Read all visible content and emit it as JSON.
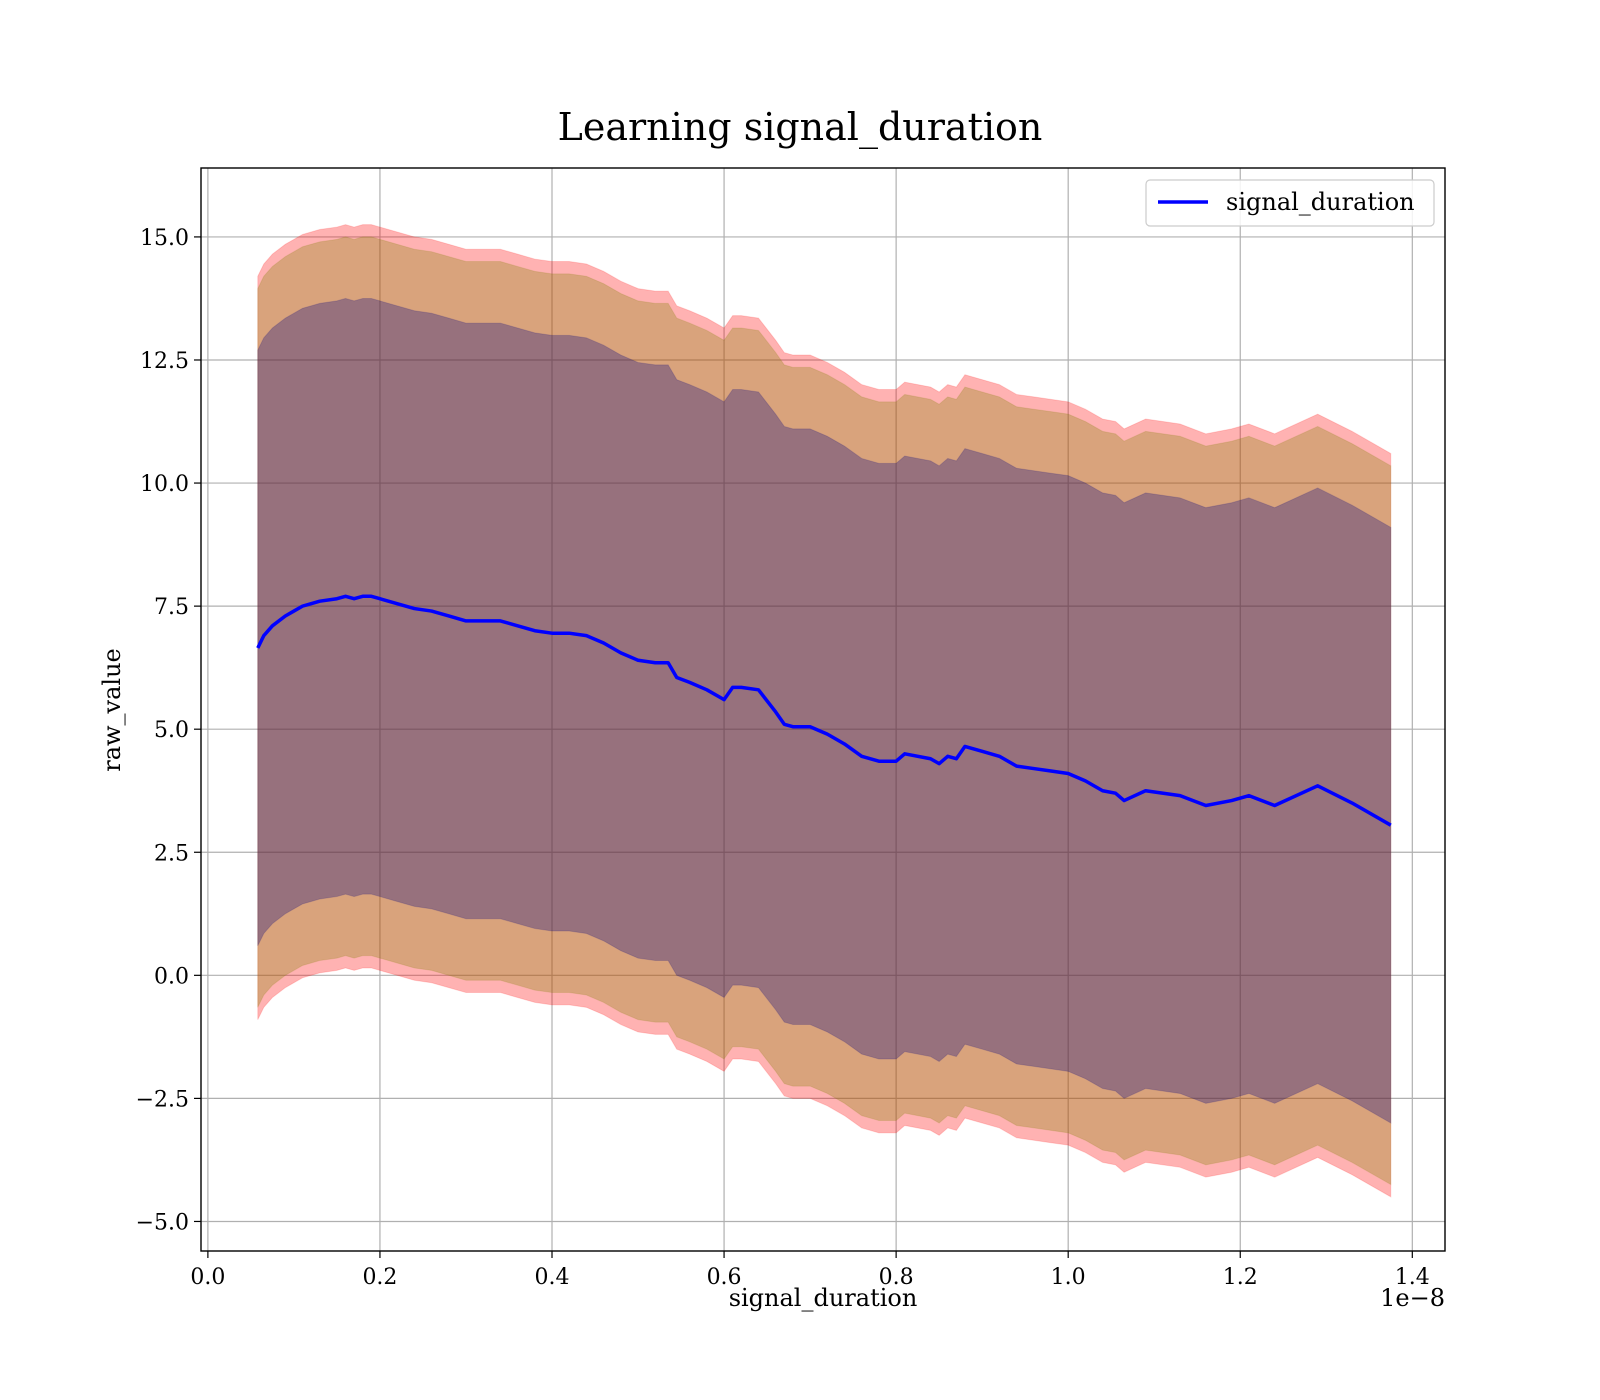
{
  "chart_data": {
    "type": "line",
    "title": "Learning signal_duration",
    "xlabel": "signal_duration",
    "ylabel": "raw_value",
    "x_offset_label": "1e−8",
    "xlim": [
      -0.008,
      1.438
    ],
    "ylim": [
      -5.6,
      16.4
    ],
    "x_ticks": [
      0.0,
      0.2,
      0.4,
      0.6,
      0.8,
      1.0,
      1.2,
      1.4
    ],
    "x_tick_labels": [
      "0.0",
      "0.2",
      "0.4",
      "0.6",
      "0.8",
      "1.0",
      "1.2",
      "1.4"
    ],
    "y_ticks": [
      -5.0,
      -2.5,
      0.0,
      2.5,
      5.0,
      7.5,
      10.0,
      12.5,
      15.0
    ],
    "y_tick_labels": [
      "−5.0",
      "−2.5",
      "0.0",
      "2.5",
      "5.0",
      "7.5",
      "10.0",
      "12.5",
      "15.0"
    ],
    "grid": true,
    "legend_position": "top-right",
    "series": [
      {
        "name": "signal_duration",
        "color": "#0000ff",
        "x": [
          0.058,
          0.065,
          0.075,
          0.09,
          0.1,
          0.11,
          0.12,
          0.13,
          0.15,
          0.16,
          0.17,
          0.18,
          0.19,
          0.2,
          0.22,
          0.24,
          0.26,
          0.28,
          0.3,
          0.32,
          0.34,
          0.36,
          0.38,
          0.4,
          0.42,
          0.44,
          0.46,
          0.48,
          0.5,
          0.52,
          0.535,
          0.545,
          0.56,
          0.58,
          0.6,
          0.61,
          0.62,
          0.64,
          0.66,
          0.67,
          0.68,
          0.7,
          0.72,
          0.74,
          0.76,
          0.78,
          0.8,
          0.81,
          0.84,
          0.85,
          0.86,
          0.87,
          0.88,
          0.9,
          0.92,
          0.94,
          0.96,
          0.98,
          1.0,
          1.02,
          1.04,
          1.055,
          1.065,
          1.09,
          1.13,
          1.16,
          1.19,
          1.21,
          1.24,
          1.29,
          1.33,
          1.375
        ],
        "y": [
          6.65,
          6.9,
          7.1,
          7.3,
          7.4,
          7.5,
          7.55,
          7.6,
          7.65,
          7.7,
          7.65,
          7.7,
          7.7,
          7.65,
          7.55,
          7.45,
          7.4,
          7.3,
          7.2,
          7.2,
          7.2,
          7.1,
          7.0,
          6.95,
          6.95,
          6.9,
          6.75,
          6.55,
          6.4,
          6.35,
          6.35,
          6.05,
          5.95,
          5.8,
          5.6,
          5.85,
          5.85,
          5.8,
          5.35,
          5.1,
          5.05,
          5.05,
          4.9,
          4.7,
          4.45,
          4.35,
          4.35,
          4.5,
          4.4,
          4.3,
          4.45,
          4.4,
          4.65,
          4.55,
          4.45,
          4.25,
          4.2,
          4.15,
          4.1,
          3.95,
          3.75,
          3.7,
          3.55,
          3.75,
          3.65,
          3.45,
          3.55,
          3.65,
          3.45,
          3.85,
          3.5,
          3.05
        ]
      }
    ],
    "bands": [
      {
        "color": "#ff0000",
        "opacity": 0.3,
        "lower_offset": -7.55,
        "upper_offset": 7.55
      },
      {
        "color": "#808000",
        "opacity": 0.3,
        "lower_offset": -7.3,
        "upper_offset": 7.3
      },
      {
        "color": "#000080",
        "opacity": 0.3,
        "lower_offset": -6.05,
        "upper_offset": 6.05
      }
    ]
  }
}
